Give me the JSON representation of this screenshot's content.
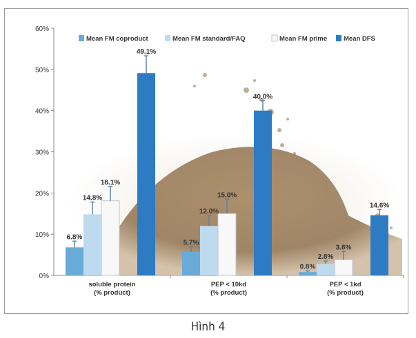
{
  "chart_data": {
    "type": "bar",
    "categories": [
      [
        "soluble protein",
        "(% product)"
      ],
      [
        "PEP < 10kd",
        "(% product)"
      ],
      [
        "PEP < 1kd",
        "(% product)"
      ]
    ],
    "series": [
      {
        "name": "Mean FM coproduct",
        "values": [
          6.8,
          5.7,
          0.8
        ],
        "errors": [
          1.5,
          1.2,
          0.3
        ],
        "labels": [
          "6.8%",
          "5.7%",
          "0.8%"
        ],
        "color": "#6aaad8"
      },
      {
        "name": "Mean FM standard/FAQ",
        "values": [
          14.8,
          12.0,
          2.8
        ],
        "errors": [
          3.0,
          2.5,
          0.7
        ],
        "labels": [
          "14.8%",
          "12.0%",
          "2.8%"
        ],
        "color": "#bedaee"
      },
      {
        "name": "Mean FM prime",
        "values": [
          18.1,
          15.0,
          3.8
        ],
        "errors": [
          3.5,
          3.5,
          2.0
        ],
        "labels": [
          "18.1%",
          "15.0%",
          "3.8%"
        ],
        "color": "#f8f8f8"
      },
      {
        "name": "Mean DFS",
        "values": [
          49.1,
          40.0,
          14.6
        ],
        "errors": [
          4.2,
          2.4,
          1.4
        ],
        "labels": [
          "49.1%",
          "40.0%",
          "14.6%"
        ],
        "color": "#2d7cc3"
      }
    ],
    "ylim": [
      0,
      60
    ],
    "yticks": [
      "0%",
      "10%",
      "20%",
      "30%",
      "40%",
      "50%",
      "60%"
    ],
    "grid": false,
    "legend": "top"
  },
  "caption": "Hình 4",
  "colors": {
    "axis": "#888888",
    "text": "#333333",
    "background_pile": "#8a6a45"
  }
}
